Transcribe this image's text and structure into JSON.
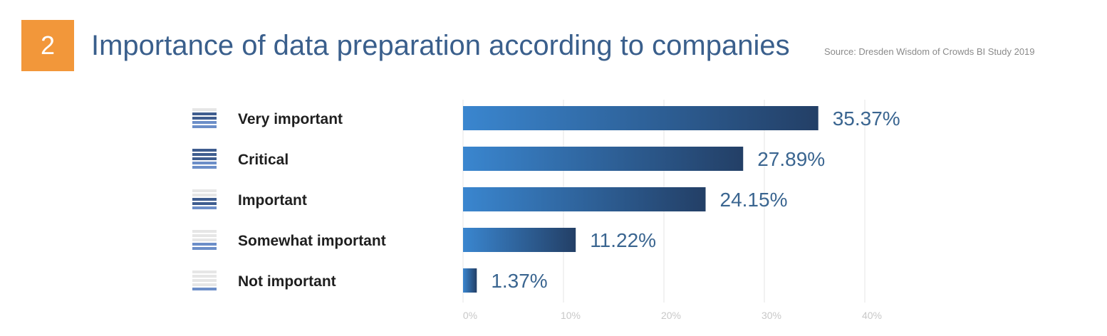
{
  "header": {
    "number": "2",
    "title": "Importance of data preparation according to companies",
    "source": "Source: Dresden Wisdom of Crowds BI Study 2019"
  },
  "colors": {
    "badge": "#f2973a",
    "title": "#3a5f8c",
    "bar_start": "#3a86cf",
    "bar_end": "#233f66",
    "value_label": "#3a6590",
    "tick_label": "#c8c8c8",
    "grid": "#eeeeee",
    "legend_dark": "#3f5d8f",
    "legend_mid": "#6c8ec8",
    "legend_light": "#e6e6e6"
  },
  "chart_data": {
    "type": "bar",
    "orientation": "horizontal",
    "categories": [
      "Very important",
      "Critical",
      "Important",
      "Somewhat important",
      "Not important"
    ],
    "values": [
      35.37,
      27.89,
      24.15,
      11.22,
      1.37
    ],
    "value_labels": [
      "35.37%",
      "27.89%",
      "24.15%",
      "11.22%",
      "1.37%"
    ],
    "legend_levels": [
      4,
      5,
      3,
      2,
      1
    ],
    "xlim": [
      0,
      40
    ],
    "xticks": [
      0,
      10,
      20,
      30,
      40
    ],
    "xtick_labels": [
      "0%",
      "10%",
      "20%",
      "30%",
      "40%"
    ],
    "grid": true,
    "title": "Importance of data preparation according to companies"
  }
}
